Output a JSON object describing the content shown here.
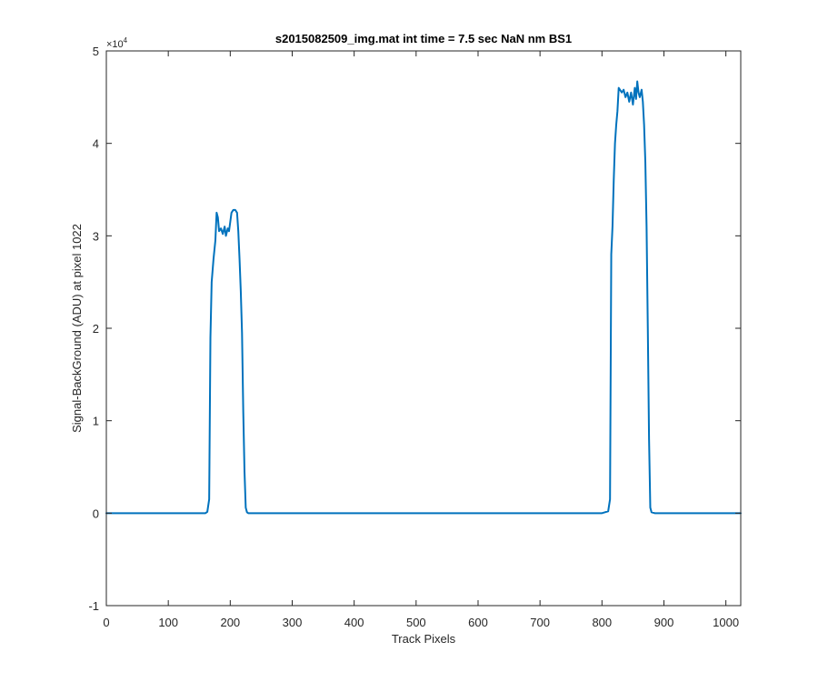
{
  "chart_data": {
    "type": "line",
    "title": "s2015082509_img.mat int time = 7.5 sec  NaN nm BS1",
    "xlabel": "Track Pixels",
    "ylabel": "Signal-BackGround (ADU) at pixel 1022",
    "y_exponent_base": "×10",
    "y_exponent_power": "4",
    "xlim": [
      0,
      1024
    ],
    "ylim": [
      -10000,
      50000
    ],
    "x_ticks": [
      0,
      100,
      200,
      300,
      400,
      500,
      600,
      700,
      800,
      900,
      1000
    ],
    "x_tick_labels": [
      "0",
      "100",
      "200",
      "300",
      "400",
      "500",
      "600",
      "700",
      "800",
      "900",
      "1000"
    ],
    "y_ticks": [
      -10000,
      0,
      10000,
      20000,
      30000,
      40000,
      50000
    ],
    "y_tick_labels": [
      "-1",
      "0",
      "1",
      "2",
      "3",
      "4",
      "5"
    ],
    "grid": false,
    "box": true,
    "series": [
      {
        "color": "#0072BD",
        "x": [
          0,
          160,
          163,
          166,
          168,
          170,
          173,
          176,
          178,
          180,
          182,
          185,
          188,
          191,
          193,
          196,
          198,
          200,
          202,
          205,
          208,
          211,
          213,
          215,
          217,
          219,
          221,
          223,
          225,
          227,
          229,
          231,
          233,
          236,
          240,
          300,
          400,
          500,
          600,
          700,
          800,
          810,
          813,
          815,
          817,
          819,
          821,
          823,
          825,
          827,
          829,
          832,
          835,
          838,
          841,
          844,
          847,
          850,
          853,
          855,
          857,
          859,
          861,
          864,
          866,
          868,
          870,
          872,
          874,
          876,
          878,
          880,
          885,
          900,
          1000,
          1024
        ],
        "y": [
          0,
          0,
          150,
          1500,
          19000,
          25000,
          27500,
          29500,
          32500,
          32000,
          30500,
          30800,
          30200,
          31000,
          30000,
          30800,
          30500,
          31500,
          32500,
          32800,
          32800,
          32500,
          30500,
          27500,
          24000,
          19500,
          11000,
          4500,
          600,
          100,
          0,
          0,
          0,
          0,
          0,
          0,
          0,
          0,
          0,
          0,
          0,
          200,
          1500,
          28000,
          31000,
          36000,
          40000,
          42000,
          43500,
          46000,
          45800,
          45500,
          45800,
          45000,
          45500,
          44500,
          45500,
          44200,
          46000,
          44800,
          46700,
          45500,
          45000,
          45800,
          44500,
          42000,
          38000,
          31000,
          20000,
          8000,
          600,
          100,
          0,
          0,
          0,
          0
        ]
      }
    ]
  }
}
